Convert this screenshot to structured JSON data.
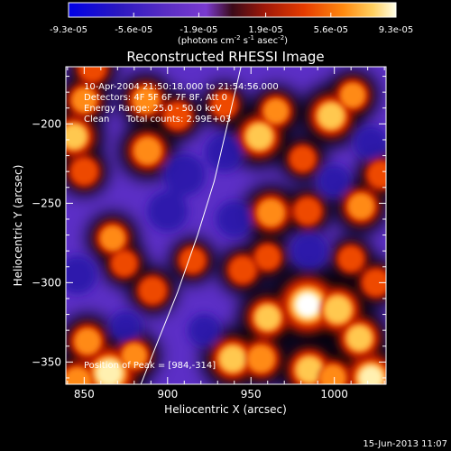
{
  "colorbar": {
    "ticks": [
      "-9.3e-05",
      "-5.6e-05",
      "-1.9e-05",
      "1.9e-05",
      "5.6e-05",
      "9.3e-05"
    ],
    "label": "(photons cm",
    "label_exp1": "-2",
    "label_mid": " s",
    "label_exp2": "-1",
    "label_end": " asec",
    "label_exp3": "-2",
    "label_close": ")",
    "range": [
      -9.3e-05,
      9.3e-05
    ]
  },
  "chart_data": {
    "type": "heatmap",
    "title": "Reconstructed RHESSI Image",
    "xlabel": "Heliocentric X (arcsec)",
    "ylabel": "Heliocentric Y (arcsec)",
    "xlim": [
      839,
      1031
    ],
    "ylim": [
      -364,
      -164
    ],
    "x_ticks": [
      850,
      900,
      950,
      1000
    ],
    "y_ticks": [
      -200,
      -250,
      -300,
      -350
    ],
    "colormap": [
      "#0000e6",
      "#3410b0",
      "#5a2ec4",
      "#6c3ad4",
      "#8a3cc8",
      "#5a1010",
      "#c02008",
      "#f04a00",
      "#ff9a20",
      "#ffe080",
      "#ffffe8"
    ],
    "annotations": [
      "10-Apr-2004 21:50:18.000 to 21:54:56.000",
      "Detectors: 4F 5F 6F 7F 8F, Att 0",
      "Energy Range: 25.0 - 50.0 keV",
      "Clean",
      "Total counts: 2.99E+03"
    ],
    "peak_label": "Position of Peak = [984,-314]",
    "peak": {
      "x": 984,
      "y": -314,
      "value": 9.3e-05
    },
    "sources": [
      {
        "x": 984,
        "y": -314,
        "value": 9.3e-05
      },
      {
        "x": 1002,
        "y": -317,
        "value": 6.5e-05
      },
      {
        "x": 960,
        "y": -322,
        "value": 5.5e-05
      },
      {
        "x": 865,
        "y": -357,
        "value": 8.2e-05
      },
      {
        "x": 852,
        "y": -337,
        "value": 4.5e-05
      },
      {
        "x": 880,
        "y": -346,
        "value": 4e-05
      },
      {
        "x": 846,
        "y": -362,
        "value": 5e-05
      },
      {
        "x": 939,
        "y": -348,
        "value": 6e-05
      },
      {
        "x": 956,
        "y": -348,
        "value": 5e-05
      },
      {
        "x": 1015,
        "y": -335,
        "value": 5.5e-05
      },
      {
        "x": 1022,
        "y": -360,
        "value": 7e-05
      },
      {
        "x": 985,
        "y": -355,
        "value": 6e-05
      },
      {
        "x": 999,
        "y": -360,
        "value": 4.5e-05
      },
      {
        "x": 955,
        "y": -208,
        "value": 6e-05
      },
      {
        "x": 965,
        "y": -192,
        "value": 4e-05
      },
      {
        "x": 888,
        "y": -217,
        "value": 5e-05
      },
      {
        "x": 844,
        "y": -208,
        "value": 5.5e-05
      },
      {
        "x": 850,
        "y": -185,
        "value": 4e-05
      },
      {
        "x": 850,
        "y": -230,
        "value": 3.5e-05
      },
      {
        "x": 887,
        "y": -185,
        "value": 4.5e-05
      },
      {
        "x": 906,
        "y": -195,
        "value": 3.5e-05
      },
      {
        "x": 934,
        "y": -188,
        "value": 3e-05
      },
      {
        "x": 998,
        "y": -195,
        "value": 6e-05
      },
      {
        "x": 1011,
        "y": -182,
        "value": 4e-05
      },
      {
        "x": 962,
        "y": -256,
        "value": 5e-05
      },
      {
        "x": 984,
        "y": -255,
        "value": 3.5e-05
      },
      {
        "x": 1016,
        "y": -252,
        "value": 4.5e-05
      },
      {
        "x": 1028,
        "y": -232,
        "value": 3.5e-05
      },
      {
        "x": 981,
        "y": -222,
        "value": 3e-05
      },
      {
        "x": 867,
        "y": -272,
        "value": 4e-05
      },
      {
        "x": 874,
        "y": -288,
        "value": 3e-05
      },
      {
        "x": 891,
        "y": -305,
        "value": 3.5e-05
      },
      {
        "x": 915,
        "y": -286,
        "value": 3e-05
      },
      {
        "x": 945,
        "y": -292,
        "value": 3.5e-05
      },
      {
        "x": 960,
        "y": -284,
        "value": 3e-05
      },
      {
        "x": 855,
        "y": -165,
        "value": 3.5e-05
      },
      {
        "x": 1010,
        "y": -285,
        "value": 3e-05
      },
      {
        "x": 1025,
        "y": -300,
        "value": 3.5e-05
      },
      {
        "x": 922,
        "y": -330,
        "value": -2e-05
      },
      {
        "x": 846,
        "y": -295,
        "value": -3.5e-05
      },
      {
        "x": 900,
        "y": -255,
        "value": -4e-05
      },
      {
        "x": 910,
        "y": -232,
        "value": -4.5e-05
      },
      {
        "x": 934,
        "y": -218,
        "value": -3.5e-05
      },
      {
        "x": 940,
        "y": -260,
        "value": -3e-05
      },
      {
        "x": 985,
        "y": -280,
        "value": -3e-05
      },
      {
        "x": 1022,
        "y": -212,
        "value": -2.5e-05
      },
      {
        "x": 875,
        "y": -328,
        "value": -2e-05
      },
      {
        "x": 1000,
        "y": -236,
        "value": -2e-05
      }
    ],
    "limb_curve": [
      [
        884,
        -364
      ],
      [
        893,
        -340
      ],
      [
        906,
        -306
      ],
      [
        918,
        -270
      ],
      [
        928,
        -236
      ],
      [
        936,
        -200
      ],
      [
        944,
        -164
      ]
    ]
  },
  "footer": {
    "timestamp": "15-Jun-2013 11:07"
  }
}
